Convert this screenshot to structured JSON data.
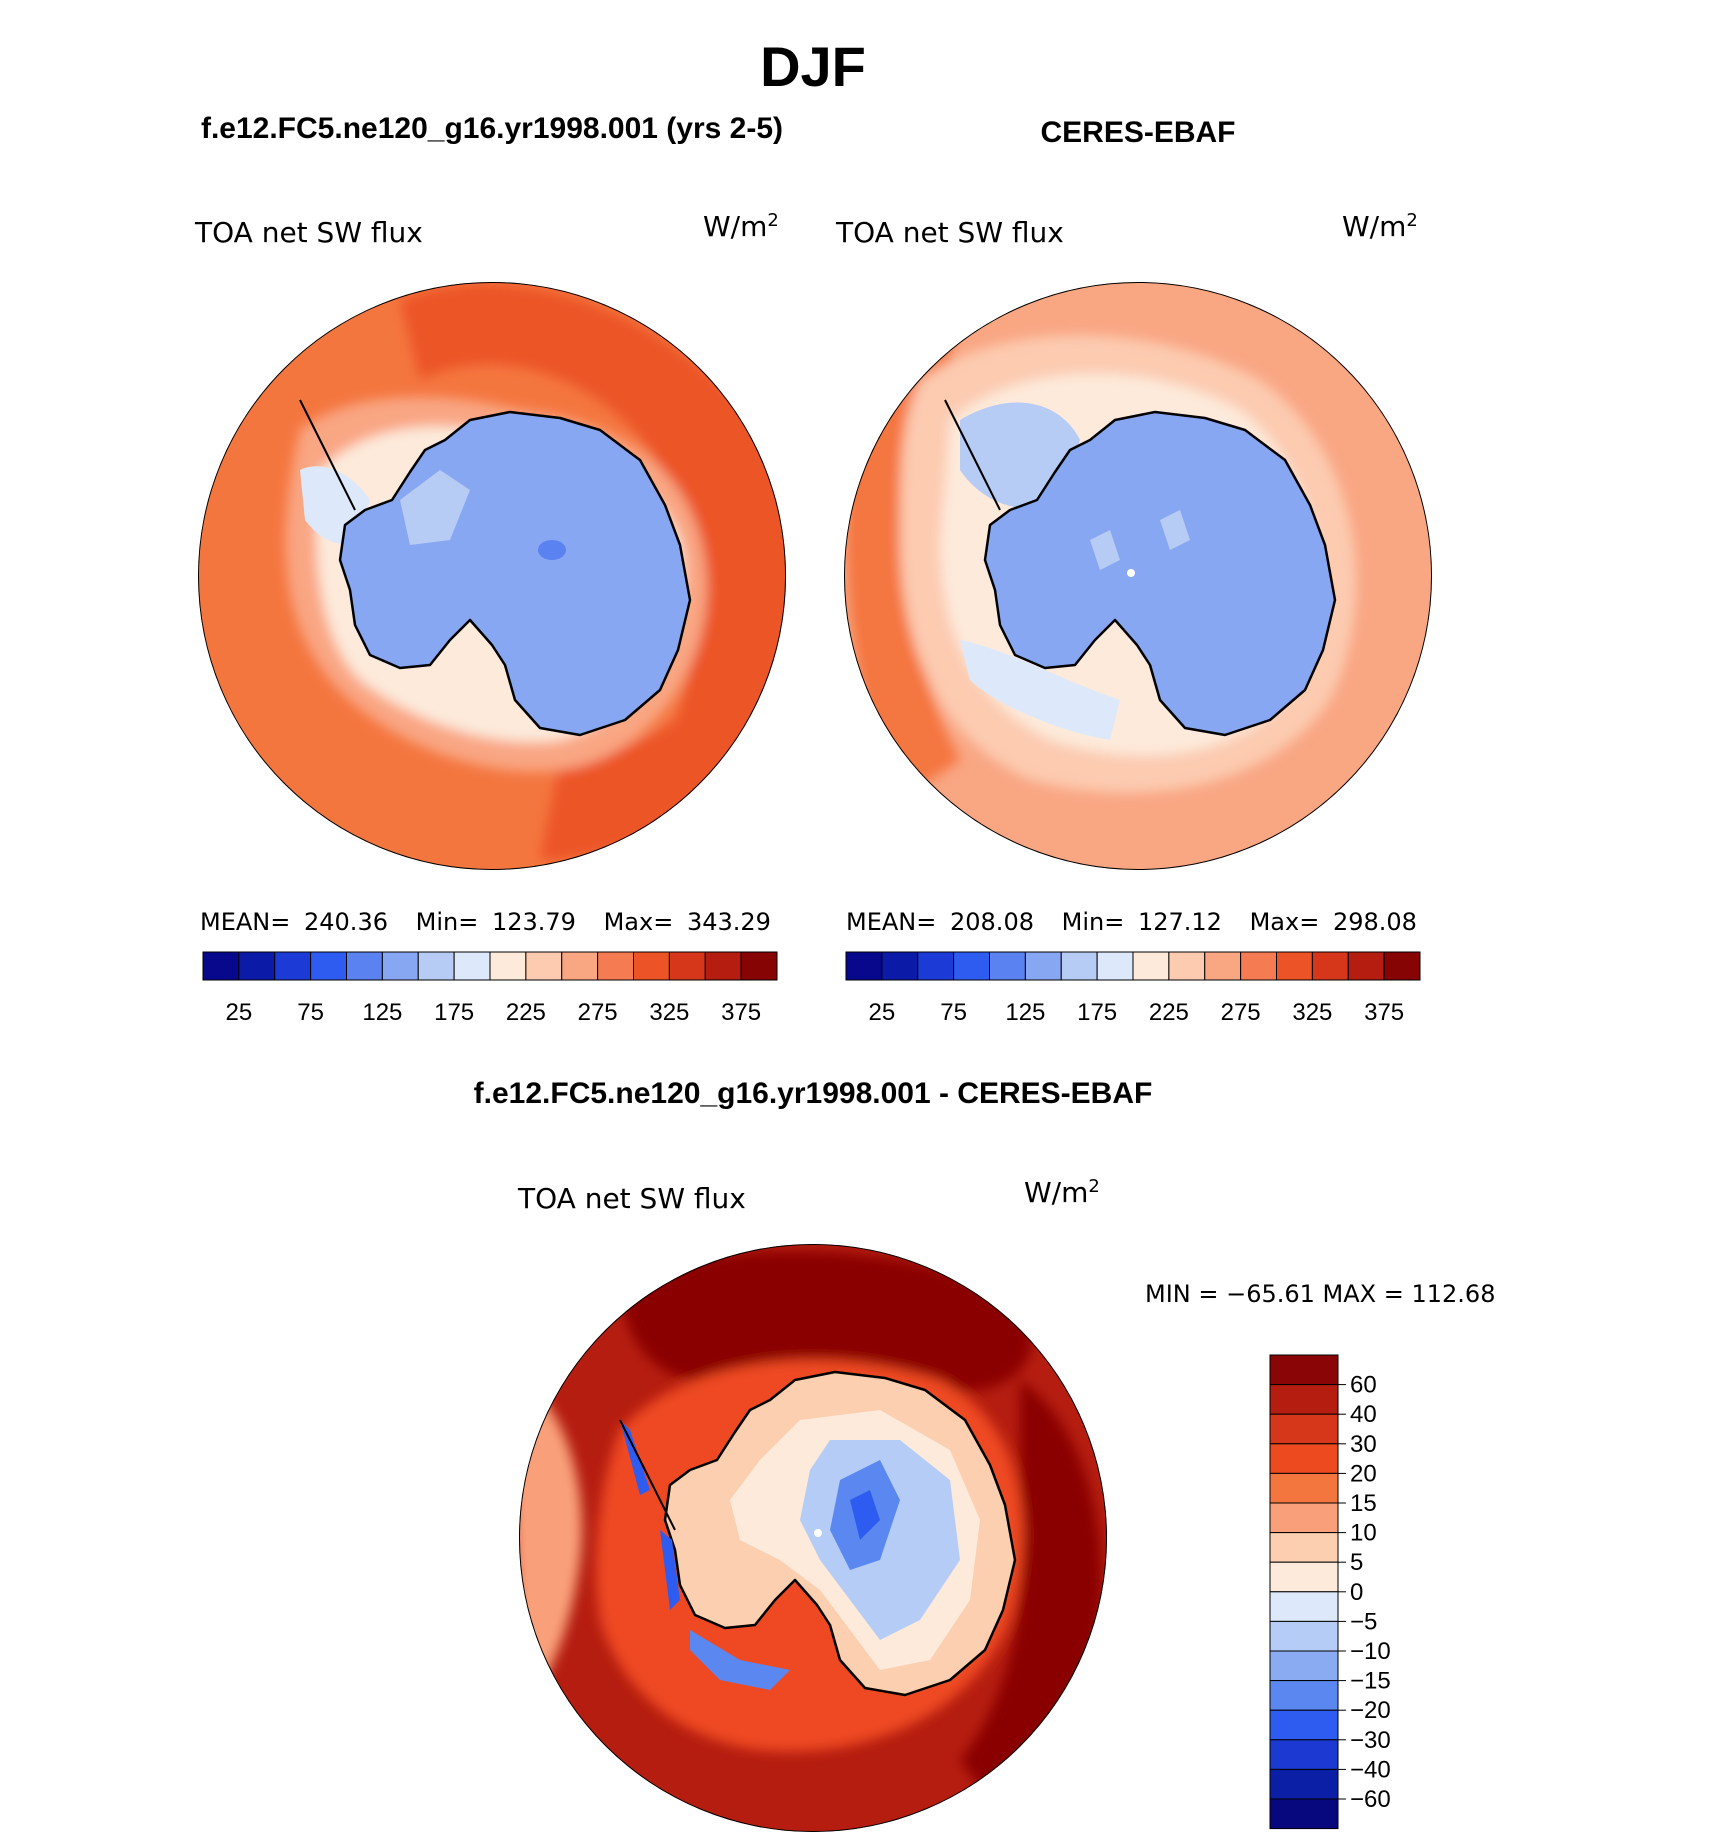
{
  "page_title": "DJF",
  "panels": [
    {
      "case_title": "f.e12.FC5.ne120_g16.yr1998.001 (yrs 2-5)",
      "variable": "TOA net SW flux",
      "units_base": "W/m",
      "units_exp": "2",
      "stats": {
        "mean_label": "MEAN=",
        "mean": "240.36",
        "min_label": "Min=",
        "min": "123.79",
        "max_label": "Max=",
        "max": "343.29"
      }
    },
    {
      "case_title": "CERES-EBAF",
      "variable": "TOA net SW flux",
      "units_base": "W/m",
      "units_exp": "2",
      "stats": {
        "mean_label": "MEAN=",
        "mean": "208.08",
        "min_label": "Min=",
        "min": "127.12",
        "max_label": "Max=",
        "max": "298.08"
      }
    },
    {
      "case_title": "f.e12.FC5.ne120_g16.yr1998.001 - CERES-EBAF",
      "variable": "TOA net SW flux",
      "units_base": "W/m",
      "units_exp": "2",
      "stats": {
        "minmax": "MIN = −65.61 MAX = 112.68"
      }
    }
  ],
  "abs_colorbar": {
    "ticks": [
      "25",
      "75",
      "125",
      "175",
      "225",
      "275",
      "325",
      "375"
    ],
    "colors": [
      "#08088c",
      "#0c1aa8",
      "#1c3bd6",
      "#2f5cf0",
      "#5a82f0",
      "#88a7f2",
      "#b7ccf5",
      "#dde9fa",
      "#fdeadb",
      "#fccbb0",
      "#f9a683",
      "#f47b52",
      "#ec5428",
      "#d6361a",
      "#b51d10",
      "#860404"
    ]
  },
  "diff_colorbar": {
    "labels": [
      "60",
      "40",
      "30",
      "20",
      "15",
      "10",
      "5",
      "0",
      "−5",
      "−10",
      "−15",
      "−20",
      "−30",
      "−40",
      "−60"
    ],
    "colors": [
      "#8a0606",
      "#b51d10",
      "#d6361a",
      "#ee4a20",
      "#f4763f",
      "#f9a07a",
      "#fccfb0",
      "#fdeada",
      "#dde9fa",
      "#b5cdf6",
      "#8aabf2",
      "#5b87f0",
      "#2e5cf0",
      "#1c3ad2",
      "#0b1ea6",
      "#07077e"
    ]
  },
  "chart_data": [
    {
      "type": "heatmap",
      "title": "f.e12.FC5.ne120_g16.yr1998.001 (yrs 2-5)",
      "variable": "TOA net SW flux",
      "units": "W/m2",
      "projection": "south polar stereographic",
      "season": "DJF",
      "mean": 240.36,
      "min": 123.79,
      "max": 343.29,
      "levels": [
        25,
        50,
        75,
        100,
        125,
        150,
        175,
        200,
        225,
        250,
        275,
        300,
        325,
        350,
        375
      ],
      "approx_regions": {
        "antarctic_plateau": 150,
        "coastal_sea_ice": 210,
        "southern_ocean": 315,
        "subtropics": 330
      }
    },
    {
      "type": "heatmap",
      "title": "CERES-EBAF",
      "variable": "TOA net SW flux",
      "units": "W/m2",
      "projection": "south polar stereographic",
      "season": "DJF",
      "mean": 208.08,
      "min": 127.12,
      "max": 298.08,
      "levels": [
        25,
        50,
        75,
        100,
        125,
        150,
        175,
        200,
        225,
        250,
        275,
        300,
        325,
        350,
        375
      ],
      "approx_regions": {
        "antarctic_plateau": 145,
        "coastal_sea_ice": 190,
        "southern_ocean": 235,
        "subtropics": 285
      }
    },
    {
      "type": "heatmap",
      "title": "f.e12.FC5.ne120_g16.yr1998.001 - CERES-EBAF",
      "variable": "TOA net SW flux",
      "units": "W/m2",
      "projection": "south polar stereographic",
      "season": "DJF",
      "min": -65.61,
      "max": 112.68,
      "levels": [
        -60,
        -40,
        -30,
        -20,
        -15,
        -10,
        -5,
        0,
        5,
        10,
        15,
        20,
        30,
        40,
        60
      ],
      "approx_regions": {
        "antarctic_interior": -10,
        "coast": 5,
        "sea_ice_edge": 15,
        "southern_ocean": 60
      }
    }
  ]
}
